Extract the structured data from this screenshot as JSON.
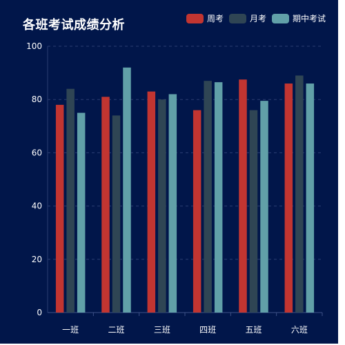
{
  "chart_data": {
    "type": "bar",
    "title": "各班考试成绩分析",
    "xlabel": "",
    "ylabel": "",
    "categories": [
      "一班",
      "二班",
      "三班",
      "四班",
      "五班",
      "六班"
    ],
    "series": [
      {
        "name": "周考",
        "color": "#c23531",
        "values": [
          78,
          81,
          83,
          76,
          87.5,
          86
        ]
      },
      {
        "name": "月考",
        "color": "#2f4554",
        "values": [
          84,
          74,
          80,
          87,
          76,
          89
        ]
      },
      {
        "name": "期中考试",
        "color": "#61a0a8",
        "values": [
          75,
          92,
          82,
          86.5,
          79.5,
          86
        ]
      }
    ],
    "ylim": [
      0,
      100
    ],
    "yticks": [
      0,
      20,
      40,
      60,
      80,
      100
    ],
    "grid": true,
    "legend_position": "top-right"
  },
  "colors": {
    "background": "#01164a",
    "gridline": "#2c3f73",
    "text": "#ffffff"
  }
}
